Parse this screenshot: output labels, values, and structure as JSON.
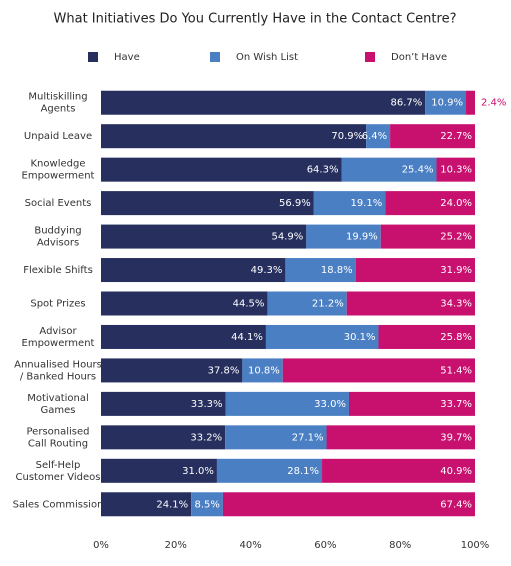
{
  "chart_data": {
    "type": "stacked-barh",
    "title": "What Initiatives Do You Currently Have in the Contact Centre?",
    "categories": [
      "Multiskilling\nAgents",
      "Unpaid Leave",
      "Knowledge\nEmpowerment",
      "Social Events",
      "Buddying\nAdvisors",
      "Flexible Shifts",
      "Spot Prizes",
      "Advisor\nEmpowerment",
      "Annualised Hours\n/ Banked Hours",
      "Motivational\nGames",
      "Personalised\nCall Routing",
      "Self-Help\nCustomer Videos",
      "Sales Commission"
    ],
    "series": [
      {
        "name": "Have",
        "color": "#262f5e",
        "values": [
          86.7,
          70.9,
          64.3,
          56.9,
          54.9,
          49.3,
          44.5,
          44.1,
          37.8,
          33.3,
          33.2,
          31.0,
          24.1
        ],
        "value_labels": [
          "86.7%",
          "70.9%",
          "64.3%",
          "56.9%",
          "54.9%",
          "49.3%",
          "44.5%",
          "44.1%",
          "37.8%",
          "33.3%",
          "33.2%",
          "31.0%",
          "24.1%"
        ]
      },
      {
        "name": "On Wish List",
        "color": "#4a7fc4",
        "values": [
          10.9,
          6.4,
          25.4,
          19.1,
          19.9,
          18.8,
          21.2,
          30.1,
          10.8,
          33.0,
          27.1,
          28.1,
          8.5
        ],
        "value_labels": [
          "10.9%",
          "6.4%",
          "25.4%",
          "19.1%",
          "19.9%",
          "18.8%",
          "21.2%",
          "30.1%",
          "10.8%",
          "33.0%",
          "27.1%",
          "28.1%",
          "8.5%"
        ]
      },
      {
        "name": "Don’t Have",
        "color": "#c8106e",
        "values": [
          2.4,
          22.7,
          10.3,
          24.0,
          25.2,
          31.9,
          34.3,
          25.8,
          51.4,
          33.7,
          39.7,
          40.9,
          67.4
        ],
        "value_labels": [
          "2.4%",
          "22.7%",
          "10.3%",
          "24.0%",
          "25.2%",
          "31.9%",
          "34.3%",
          "25.8%",
          "51.4%",
          "33.7%",
          "39.7%",
          "40.9%",
          "67.4%"
        ]
      }
    ],
    "xlim": [
      0,
      100
    ],
    "xticks": [
      {
        "value": 0,
        "label": "0%"
      },
      {
        "value": 20,
        "label": "20%"
      },
      {
        "value": 40,
        "label": "40%"
      },
      {
        "value": 60,
        "label": "60%"
      },
      {
        "value": 80,
        "label": "80%"
      },
      {
        "value": 100,
        "label": "100%"
      }
    ]
  }
}
